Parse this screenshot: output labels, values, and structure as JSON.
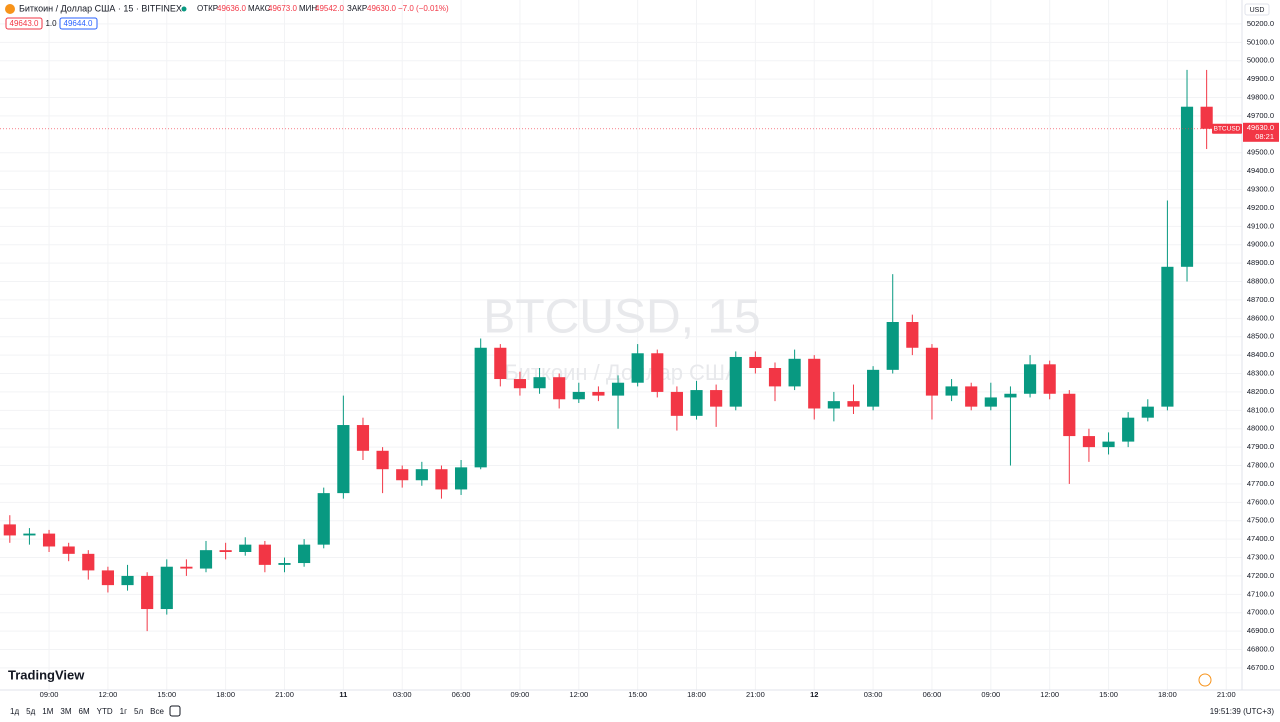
{
  "chart_data": {
    "type": "candlestick",
    "legend": {
      "symbol": "Биткоин / Доллар США · 15 · BITFINEX",
      "open_label": "ОТКР",
      "open": "49636.0",
      "high_label": "МАКС",
      "high": "49673.0",
      "low_label": "МИН",
      "low": "49542.0",
      "close_label": "ЗАКР",
      "close": "49630.0",
      "change": "−7.0 (−0.01%)"
    },
    "order": {
      "sell": "49643.0",
      "qty": "1.0",
      "buy": "49644.0"
    },
    "currency": "USD",
    "watermark": [
      "BTCUSD, 15",
      "Биткоин / Доллар США"
    ],
    "last_price": {
      "symbol": "BTCUSD",
      "value": 49630,
      "label": "49630.0",
      "countdown": "08:21"
    },
    "logo": "TradingView",
    "ranges": [
      "1д",
      "5д",
      "1М",
      "3М",
      "6М",
      "YTD",
      "1г",
      "5л",
      "Все"
    ],
    "clock": "19:51:39 (UTC+3)",
    "up_color": "#089981",
    "down_color": "#f23645",
    "grid": true,
    "x": [
      0.5,
      1.5,
      2.5,
      3.5,
      4.5,
      5.5,
      6.5,
      7.5,
      8.5,
      9.5,
      10.5,
      11.5,
      12.5,
      13.5,
      14.5,
      15.5,
      16.5,
      17.5,
      18.5,
      19.5,
      20.5,
      21.5,
      22.5,
      23.5,
      24.5,
      25.5,
      26.5,
      27.5,
      28.5,
      29.5,
      30.5,
      31.5,
      32.5,
      33.5,
      34.5,
      35.5,
      36.5,
      37.5,
      38.5,
      39.5,
      40.5,
      41.5,
      42.5,
      43.5,
      44.5,
      45.5,
      46.5,
      47.5,
      48.5,
      49.5,
      50.5,
      51.5,
      52.5,
      53.5,
      54.5,
      55.5,
      56.5,
      57.5,
      58.5,
      59.5,
      60.5,
      61.5
    ],
    "open": [
      47480,
      47420,
      47430,
      47360,
      47320,
      47230,
      47150,
      47200,
      47020,
      47250,
      47240,
      47340,
      47330,
      47370,
      47260,
      47270,
      47370,
      47650,
      48020,
      47880,
      47780,
      47720,
      47780,
      47670,
      47790,
      48440,
      48270,
      48220,
      48280,
      48160,
      48200,
      48180,
      48250,
      48410,
      48200,
      48070,
      48210,
      48120,
      48390,
      48330,
      48230,
      48380,
      48110,
      48150,
      48120,
      48320,
      48580,
      48440,
      48180,
      48230,
      48120,
      48170,
      48190,
      48350,
      48190,
      47960,
      47900,
      47930,
      48060,
      48120,
      48880,
      49750
    ],
    "high": [
      47530,
      47460,
      47450,
      47380,
      47340,
      47250,
      47260,
      47220,
      47290,
      47290,
      47390,
      47380,
      47410,
      47390,
      47300,
      47400,
      47680,
      48180,
      48060,
      47900,
      47800,
      47820,
      47800,
      47830,
      48490,
      48460,
      48310,
      48330,
      48300,
      48250,
      48230,
      48290,
      48460,
      48430,
      48230,
      48260,
      48240,
      48420,
      48420,
      48360,
      48430,
      48400,
      48200,
      48240,
      48340,
      48840,
      48620,
      48460,
      48270,
      48250,
      48250,
      48230,
      48400,
      48370,
      48210,
      48000,
      47980,
      48090,
      48160,
      49240,
      49950,
      49950
    ],
    "low": [
      47380,
      47370,
      47330,
      47280,
      47180,
      47110,
      47120,
      46900,
      46990,
      47200,
      47220,
      47290,
      47310,
      47220,
      47220,
      47250,
      47350,
      47620,
      47830,
      47650,
      47680,
      47690,
      47620,
      47640,
      47780,
      48230,
      48180,
      48190,
      48110,
      48140,
      48150,
      48000,
      48230,
      48170,
      47990,
      48050,
      48010,
      48100,
      48300,
      48150,
      48210,
      48050,
      48040,
      48080,
      48100,
      48300,
      48400,
      48050,
      48150,
      48100,
      48100,
      47800,
      48170,
      48160,
      47700,
      47820,
      47860,
      47900,
      48040,
      48100,
      48800,
      49520
    ],
    "close": [
      47420,
      47430,
      47360,
      47320,
      47230,
      47150,
      47200,
      47020,
      47250,
      47240,
      47340,
      47330,
      47370,
      47260,
      47270,
      47370,
      47650,
      48020,
      47880,
      47780,
      47720,
      47780,
      47670,
      47790,
      48440,
      48270,
      48220,
      48280,
      48160,
      48200,
      48180,
      48250,
      48410,
      48200,
      48070,
      48210,
      48120,
      48390,
      48330,
      48230,
      48380,
      48110,
      48150,
      48120,
      48320,
      48580,
      48440,
      48180,
      48230,
      48120,
      48170,
      48190,
      48350,
      48190,
      47960,
      47900,
      47930,
      48060,
      48120,
      48880,
      49750,
      49630
    ],
    "xlim": [
      0,
      63.2
    ],
    "xticks": [
      {
        "value": 2.5,
        "label": "09:00"
      },
      {
        "value": 5.5,
        "label": "12:00"
      },
      {
        "value": 8.5,
        "label": "15:00"
      },
      {
        "value": 11.5,
        "label": "18:00"
      },
      {
        "value": 14.5,
        "label": "21:00"
      },
      {
        "value": 17.5,
        "label": "11"
      },
      {
        "value": 20.5,
        "label": "03:00"
      },
      {
        "value": 23.5,
        "label": "06:00"
      },
      {
        "value": 26.5,
        "label": "09:00"
      },
      {
        "value": 29.5,
        "label": "12:00"
      },
      {
        "value": 32.5,
        "label": "15:00"
      },
      {
        "value": 35.5,
        "label": "18:00"
      },
      {
        "value": 38.5,
        "label": "21:00"
      },
      {
        "value": 41.5,
        "label": "12"
      },
      {
        "value": 44.5,
        "label": "03:00"
      },
      {
        "value": 47.5,
        "label": "06:00"
      },
      {
        "value": 50.5,
        "label": "09:00"
      },
      {
        "value": 53.5,
        "label": "12:00"
      },
      {
        "value": 56.5,
        "label": "15:00"
      },
      {
        "value": 59.5,
        "label": "18:00"
      },
      {
        "value": 62.5,
        "label": "21:00"
      }
    ],
    "ylim": [
      46580,
      50330
    ],
    "yticks": [
      {
        "value": 46700,
        "label": "46700.0"
      },
      {
        "value": 46800,
        "label": "46800.0"
      },
      {
        "value": 46900,
        "label": "46900.0"
      },
      {
        "value": 47000,
        "label": "47000.0"
      },
      {
        "value": 47100,
        "label": "47100.0"
      },
      {
        "value": 47200,
        "label": "47200.0"
      },
      {
        "value": 47300,
        "label": "47300.0"
      },
      {
        "value": 47400,
        "label": "47400.0"
      },
      {
        "value": 47500,
        "label": "47500.0"
      },
      {
        "value": 47600,
        "label": "47600.0"
      },
      {
        "value": 47700,
        "label": "47700.0"
      },
      {
        "value": 47800,
        "label": "47800.0"
      },
      {
        "value": 47900,
        "label": "47900.0"
      },
      {
        "value": 48000,
        "label": "48000.0"
      },
      {
        "value": 48100,
        "label": "48100.0"
      },
      {
        "value": 48200,
        "label": "48200.0"
      },
      {
        "value": 48300,
        "label": "48300.0"
      },
      {
        "value": 48400,
        "label": "48400.0"
      },
      {
        "value": 48500,
        "label": "48500.0"
      },
      {
        "value": 48600,
        "label": "48600.0"
      },
      {
        "value": 48700,
        "label": "48700.0"
      },
      {
        "value": 48800,
        "label": "48800.0"
      },
      {
        "value": 48900,
        "label": "48900.0"
      },
      {
        "value": 49000,
        "label": "49000.0"
      },
      {
        "value": 49100,
        "label": "49100.0"
      },
      {
        "value": 49200,
        "label": "49200.0"
      },
      {
        "value": 49300,
        "label": "49300.0"
      },
      {
        "value": 49400,
        "label": "49400.0"
      },
      {
        "value": 49500,
        "label": "49500.0"
      },
      {
        "value": 49700,
        "label": "49700.0"
      },
      {
        "value": 49800,
        "label": "49800.0"
      },
      {
        "value": 49900,
        "label": "49900.0"
      },
      {
        "value": 50000,
        "label": "50000.0"
      },
      {
        "value": 50100,
        "label": "50100.0"
      },
      {
        "value": 50200,
        "label": "50200.0"
      }
    ]
  }
}
